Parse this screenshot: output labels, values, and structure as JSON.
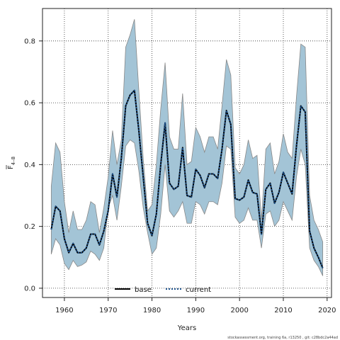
{
  "chart_data": {
    "type": "line",
    "xlabel": "Years",
    "ylabel_main": "F",
    "ylabel_sub": "4–8",
    "xlim": [
      1955,
      2021
    ],
    "ylim": [
      -0.03,
      0.905
    ],
    "x_ticks": [
      1960,
      1970,
      1980,
      1990,
      2000,
      2010,
      2020
    ],
    "y_ticks": [
      0.0,
      0.2,
      0.4,
      0.6,
      0.8
    ],
    "y_tick_labels": [
      "0.0",
      "0.2",
      "0.4",
      "0.6",
      "0.8"
    ],
    "grid": true,
    "legend_position": "bottom-center",
    "band_color": "#a3c4d6",
    "band_edge_color": "#888888",
    "years": [
      1957,
      1958,
      1959,
      1960,
      1961,
      1962,
      1963,
      1964,
      1965,
      1966,
      1967,
      1968,
      1969,
      1970,
      1971,
      1972,
      1973,
      1974,
      1975,
      1976,
      1977,
      1978,
      1979,
      1980,
      1981,
      1982,
      1983,
      1984,
      1985,
      1986,
      1987,
      1988,
      1989,
      1990,
      1991,
      1992,
      1993,
      1994,
      1995,
      1996,
      1997,
      1998,
      1999,
      2000,
      2001,
      2002,
      2003,
      2004,
      2005,
      2006,
      2007,
      2008,
      2009,
      2010,
      2011,
      2012,
      2013,
      2014,
      2015,
      2016,
      2017,
      2018,
      2019
    ],
    "band_upper": [
      0.33,
      0.47,
      0.44,
      0.28,
      0.18,
      0.25,
      0.19,
      0.19,
      0.22,
      0.28,
      0.27,
      0.18,
      0.26,
      0.36,
      0.51,
      0.4,
      0.48,
      0.78,
      0.82,
      0.87,
      0.64,
      0.42,
      0.25,
      0.27,
      0.4,
      0.58,
      0.73,
      0.49,
      0.45,
      0.45,
      0.63,
      0.4,
      0.41,
      0.52,
      0.49,
      0.44,
      0.49,
      0.49,
      0.45,
      0.59,
      0.74,
      0.69,
      0.39,
      0.37,
      0.4,
      0.48,
      0.42,
      0.43,
      0.22,
      0.45,
      0.47,
      0.37,
      0.41,
      0.5,
      0.44,
      0.42,
      0.62,
      0.79,
      0.78,
      0.3,
      0.22,
      0.19,
      0.15
    ],
    "band_lower": [
      0.11,
      0.16,
      0.14,
      0.08,
      0.06,
      0.09,
      0.07,
      0.075,
      0.085,
      0.12,
      0.11,
      0.09,
      0.13,
      0.26,
      0.3,
      0.22,
      0.33,
      0.46,
      0.48,
      0.47,
      0.38,
      0.26,
      0.18,
      0.11,
      0.13,
      0.24,
      0.4,
      0.25,
      0.23,
      0.25,
      0.28,
      0.21,
      0.21,
      0.28,
      0.27,
      0.24,
      0.28,
      0.28,
      0.27,
      0.34,
      0.46,
      0.45,
      0.23,
      0.21,
      0.22,
      0.26,
      0.22,
      0.22,
      0.13,
      0.24,
      0.25,
      0.2,
      0.22,
      0.28,
      0.25,
      0.22,
      0.36,
      0.45,
      0.4,
      0.13,
      0.09,
      0.07,
      0.04
    ],
    "series": [
      {
        "name": "base",
        "color": "#000000",
        "style": "solid",
        "values": [
          0.19,
          0.265,
          0.25,
          0.16,
          0.115,
          0.145,
          0.115,
          0.115,
          0.13,
          0.175,
          0.175,
          0.14,
          0.185,
          0.25,
          0.37,
          0.295,
          0.42,
          0.59,
          0.625,
          0.64,
          0.51,
          0.36,
          0.21,
          0.17,
          0.24,
          0.4,
          0.535,
          0.34,
          0.32,
          0.33,
          0.455,
          0.3,
          0.295,
          0.385,
          0.365,
          0.325,
          0.37,
          0.37,
          0.355,
          0.45,
          0.575,
          0.53,
          0.29,
          0.285,
          0.295,
          0.35,
          0.31,
          0.305,
          0.175,
          0.32,
          0.34,
          0.275,
          0.31,
          0.375,
          0.34,
          0.305,
          0.46,
          0.59,
          0.57,
          0.185,
          0.13,
          0.1,
          0.065
        ]
      },
      {
        "name": "current",
        "color": "#1a4f8a",
        "style": "dotted",
        "values": [
          0.19,
          0.265,
          0.25,
          0.16,
          0.115,
          0.145,
          0.115,
          0.115,
          0.13,
          0.175,
          0.175,
          0.14,
          0.185,
          0.25,
          0.37,
          0.295,
          0.42,
          0.59,
          0.625,
          0.64,
          0.51,
          0.36,
          0.21,
          0.17,
          0.24,
          0.4,
          0.535,
          0.34,
          0.32,
          0.33,
          0.455,
          0.3,
          0.295,
          0.385,
          0.365,
          0.325,
          0.37,
          0.37,
          0.355,
          0.45,
          0.575,
          0.53,
          0.29,
          0.285,
          0.295,
          0.35,
          0.31,
          0.305,
          0.175,
          0.32,
          0.34,
          0.275,
          0.31,
          0.375,
          0.34,
          0.305,
          0.46,
          0.59,
          0.57,
          0.185,
          0.13,
          0.1,
          0.065
        ]
      }
    ],
    "footer": "stockassessment.org, training 6a, r13250 , git: c28bdc2a44ad"
  }
}
